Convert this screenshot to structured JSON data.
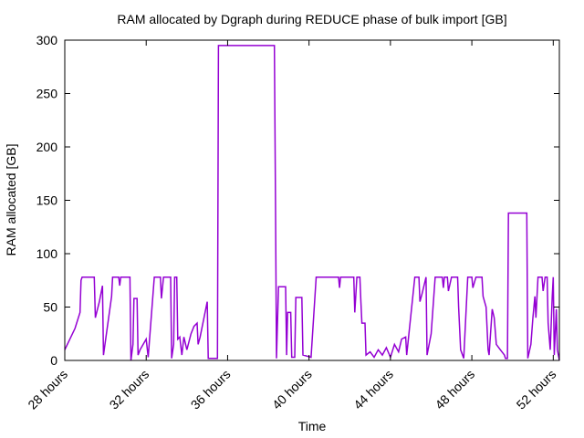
{
  "chart_data": {
    "type": "line",
    "title": "RAM allocated by Dgraph during REDUCE phase of bulk import [GB]",
    "xlabel": "Time",
    "ylabel": "RAM allocated [GB]",
    "xlim": [
      28,
      52.3
    ],
    "ylim": [
      0,
      300
    ],
    "x_unit": "hours",
    "x_ticks": [
      {
        "value": 28,
        "label": "28 hours"
      },
      {
        "value": 32,
        "label": "32 hours"
      },
      {
        "value": 36,
        "label": "36 hours"
      },
      {
        "value": 40,
        "label": "40 hours"
      },
      {
        "value": 44,
        "label": "44 hours"
      },
      {
        "value": 48,
        "label": "48 hours"
      },
      {
        "value": 52,
        "label": "52 hours"
      }
    ],
    "y_ticks": [
      0,
      50,
      100,
      150,
      200,
      250,
      300
    ],
    "grid": false,
    "legend": "none",
    "series": [
      {
        "color": "#9400d3",
        "points": [
          [
            28.0,
            10
          ],
          [
            28.5,
            30
          ],
          [
            28.75,
            45
          ],
          [
            28.8,
            75
          ],
          [
            28.85,
            78
          ],
          [
            29.45,
            78
          ],
          [
            29.5,
            40
          ],
          [
            29.7,
            55
          ],
          [
            29.85,
            70
          ],
          [
            29.9,
            5
          ],
          [
            30.3,
            60
          ],
          [
            30.35,
            78
          ],
          [
            30.65,
            78
          ],
          [
            30.7,
            70
          ],
          [
            30.75,
            78
          ],
          [
            31.2,
            78
          ],
          [
            31.25,
            0
          ],
          [
            31.35,
            15
          ],
          [
            31.4,
            58
          ],
          [
            31.55,
            58
          ],
          [
            31.6,
            5
          ],
          [
            31.7,
            10
          ],
          [
            32.0,
            20
          ],
          [
            32.1,
            3
          ],
          [
            32.4,
            78
          ],
          [
            32.7,
            78
          ],
          [
            32.75,
            58
          ],
          [
            32.85,
            78
          ],
          [
            33.2,
            78
          ],
          [
            33.25,
            2
          ],
          [
            33.35,
            15
          ],
          [
            33.4,
            78
          ],
          [
            33.5,
            78
          ],
          [
            33.55,
            20
          ],
          [
            33.65,
            22
          ],
          [
            33.75,
            5
          ],
          [
            33.85,
            22
          ],
          [
            34.0,
            10
          ],
          [
            34.2,
            25
          ],
          [
            34.35,
            32
          ],
          [
            34.5,
            35
          ],
          [
            34.55,
            15
          ],
          [
            34.65,
            22
          ],
          [
            35.0,
            55
          ],
          [
            35.05,
            2
          ],
          [
            35.5,
            2
          ],
          [
            35.55,
            295
          ],
          [
            38.3,
            295
          ],
          [
            38.35,
            150
          ],
          [
            38.4,
            2
          ],
          [
            38.5,
            69
          ],
          [
            38.85,
            69
          ],
          [
            38.9,
            5
          ],
          [
            38.95,
            45
          ],
          [
            39.1,
            45
          ],
          [
            39.15,
            3
          ],
          [
            39.3,
            3
          ],
          [
            39.35,
            59
          ],
          [
            39.65,
            59
          ],
          [
            39.7,
            5
          ],
          [
            40.1,
            3
          ],
          [
            40.35,
            78
          ],
          [
            41.45,
            78
          ],
          [
            41.5,
            68
          ],
          [
            41.55,
            78
          ],
          [
            42.2,
            78
          ],
          [
            42.25,
            45
          ],
          [
            42.35,
            78
          ],
          [
            42.5,
            78
          ],
          [
            42.55,
            55
          ],
          [
            42.6,
            35
          ],
          [
            42.75,
            35
          ],
          [
            42.8,
            5
          ],
          [
            43.0,
            8
          ],
          [
            43.2,
            3
          ],
          [
            43.4,
            10
          ],
          [
            43.6,
            5
          ],
          [
            43.8,
            12
          ],
          [
            44.0,
            3
          ],
          [
            44.2,
            15
          ],
          [
            44.4,
            8
          ],
          [
            44.55,
            20
          ],
          [
            44.75,
            22
          ],
          [
            44.8,
            5
          ],
          [
            45.2,
            78
          ],
          [
            45.4,
            78
          ],
          [
            45.45,
            55
          ],
          [
            45.55,
            62
          ],
          [
            45.75,
            78
          ],
          [
            45.8,
            5
          ],
          [
            46.0,
            25
          ],
          [
            46.2,
            78
          ],
          [
            46.55,
            78
          ],
          [
            46.6,
            68
          ],
          [
            46.65,
            78
          ],
          [
            46.8,
            78
          ],
          [
            46.85,
            65
          ],
          [
            47.0,
            78
          ],
          [
            47.3,
            78
          ],
          [
            47.35,
            50
          ],
          [
            47.45,
            10
          ],
          [
            47.6,
            2
          ],
          [
            47.8,
            78
          ],
          [
            48.0,
            78
          ],
          [
            48.05,
            68
          ],
          [
            48.2,
            78
          ],
          [
            48.5,
            78
          ],
          [
            48.55,
            60
          ],
          [
            48.7,
            50
          ],
          [
            48.8,
            10
          ],
          [
            48.85,
            5
          ],
          [
            49.0,
            48
          ],
          [
            49.1,
            40
          ],
          [
            49.2,
            15
          ],
          [
            49.4,
            10
          ],
          [
            49.6,
            5
          ],
          [
            49.65,
            2
          ],
          [
            49.75,
            2
          ],
          [
            49.8,
            138
          ],
          [
            50.7,
            138
          ],
          [
            50.75,
            2
          ],
          [
            50.9,
            15
          ],
          [
            51.0,
            40
          ],
          [
            51.1,
            60
          ],
          [
            51.15,
            40
          ],
          [
            51.25,
            78
          ],
          [
            51.45,
            78
          ],
          [
            51.5,
            65
          ],
          [
            51.6,
            78
          ],
          [
            51.7,
            78
          ],
          [
            51.75,
            35
          ],
          [
            51.85,
            10
          ],
          [
            51.95,
            60
          ],
          [
            52.0,
            78
          ],
          [
            52.05,
            5
          ],
          [
            52.15,
            48
          ],
          [
            52.2,
            10
          ],
          [
            52.3,
            0
          ]
        ]
      }
    ]
  }
}
